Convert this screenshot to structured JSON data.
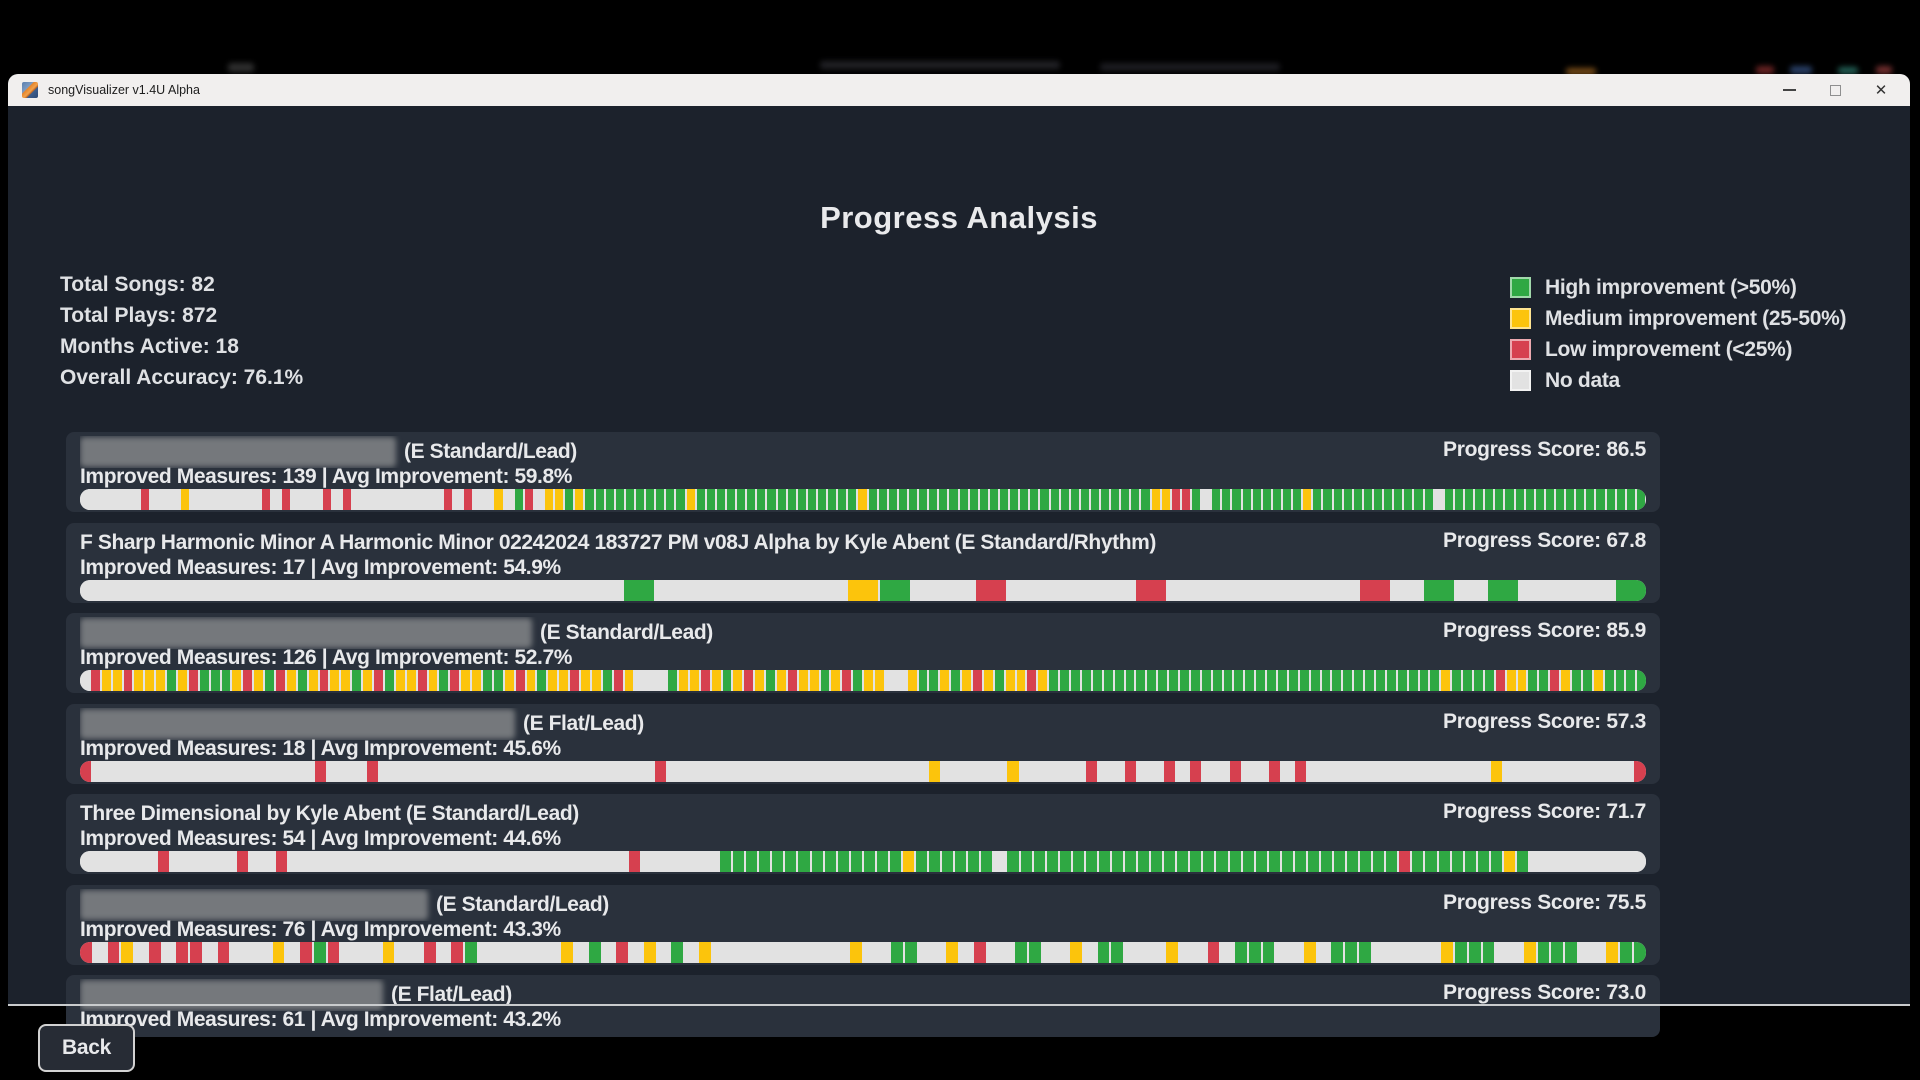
{
  "window": {
    "title": "songVisualizer v1.4U Alpha",
    "controls": {
      "minimize": "minimize",
      "maximize": "maximize",
      "close": "✕"
    }
  },
  "page": {
    "title": "Progress Analysis"
  },
  "stats": [
    "Total Songs: 82",
    "Total Plays: 872",
    "Months Active: 18",
    "Overall Accuracy: 76.1%"
  ],
  "legend": [
    {
      "label": "High improvement (>50%)",
      "color": "#2fa843"
    },
    {
      "label": "Medium improvement (25-50%)",
      "color": "#fcc40c"
    },
    {
      "label": "Low improvement (<25%)",
      "color": "#d6404f"
    },
    {
      "label": "No data",
      "color": "#e2e2e2"
    }
  ],
  "bar_colors": {
    "G": "#2fa843",
    "Y": "#fcc40c",
    "R": "#d6404f",
    "-": "#e2e2e2"
  },
  "songs": [
    {
      "redacted": true,
      "redact_width": 316,
      "title": "",
      "title_suffix": "(E Standard/Lead)",
      "score_text": "Progress Score: 86.5",
      "detail": "Improved Measures: 139 | Avg Improvement: 59.8%",
      "bar": "------R---Y-------R-R---R-R---------R-R--Y-GR-YYGYGGGGGGGGGGYGGGGGGGGGGGGGGGGYGGGGGGGGGGGGGGGGGGGGGGGGGGGGYYRRG-GGGGGGGGGYGGGGGGGGGGGG-GGGGGGGGGGGGGGGGGGGG"
    },
    {
      "redacted": false,
      "redact_width": 0,
      "title": "F Sharp Harmonic Minor A Harmonic Minor 02242024 183727 PM v08J Alpha by Kyle Abent (E Standard/Rhythm)",
      "title_suffix": "",
      "score_text": "Progress Score: 67.8",
      "detail": "Improved Measures: 17 | Avg Improvement: 54.9%",
      "bar": "-----------------G------YG--R----R------R-G-G---G"
    },
    {
      "redacted": true,
      "redact_width": 452,
      "title": "",
      "title_suffix": "(E Standard/Lead)",
      "score_text": "Progress Score: 85.9",
      "detail": "Improved Measures: 126 | Avg Improvement: 52.7%",
      "bar": "-RYYRYYYGYRGGGYRYGRYGYRYYGYRGYYRYGRYYGGYRYGYYRYYGRY---GYYRYGYRYGYRYYGYRGYY--YGGYGYRYGYYRYGGGGGGGGGGGGGGGGGGGGGGGGGGGGGGGGGGGGYGGGGRYYGGRYGGYGGGG"
    },
    {
      "redacted": true,
      "redact_width": 435,
      "title": "",
      "title_suffix": "(E Flat/Lead)",
      "score_text": "Progress Score: 57.3",
      "detail": "Improved Measures: 18 | Avg Improvement: 45.6%",
      "bar": "R-----------------R---R---------------------R--------------------Y-----Y-----R--R--R-R--R--R-R--------------Y----------R"
    },
    {
      "redacted": false,
      "redact_width": 0,
      "title": "Three Dimensional by Kyle Abent (E Standard/Lead)",
      "title_suffix": "",
      "score_text": "Progress Score: 71.7",
      "detail": "Improved Measures: 54 | Avg Improvement: 44.6%",
      "bar": "------R-----R--R--------------------------R------GGGGGGGGGGGGGGYGGGGGG-GGGGGGGGGGGGGGGGGGGGGGGGGGGGGGRGGGGGGGYG---------"
    },
    {
      "redacted": true,
      "redact_width": 348,
      "title": "",
      "title_suffix": "(E Standard/Lead)",
      "score_text": "Progress Score: 75.5",
      "detail": "Improved Measures: 76 | Avg Improvement: 43.3%",
      "bar": "R-RY-R-RR-R---Y-RGR---Y--R-RG------Y-G-R-Y-G-Y----------Y--GG--Y-R--GG--Y-GG---Y--R-GGG--Y-GGG-----YGGG--YGGG--YGG"
    },
    {
      "redacted": true,
      "redact_width": 303,
      "title": "",
      "title_suffix": "(E Flat/Lead)",
      "score_text": "Progress Score: 73.0",
      "detail": "Improved Measures: 61 | Avg Improvement: 43.2%",
      "bar": "",
      "clipped": true
    }
  ],
  "back_button": {
    "label": "Back"
  }
}
